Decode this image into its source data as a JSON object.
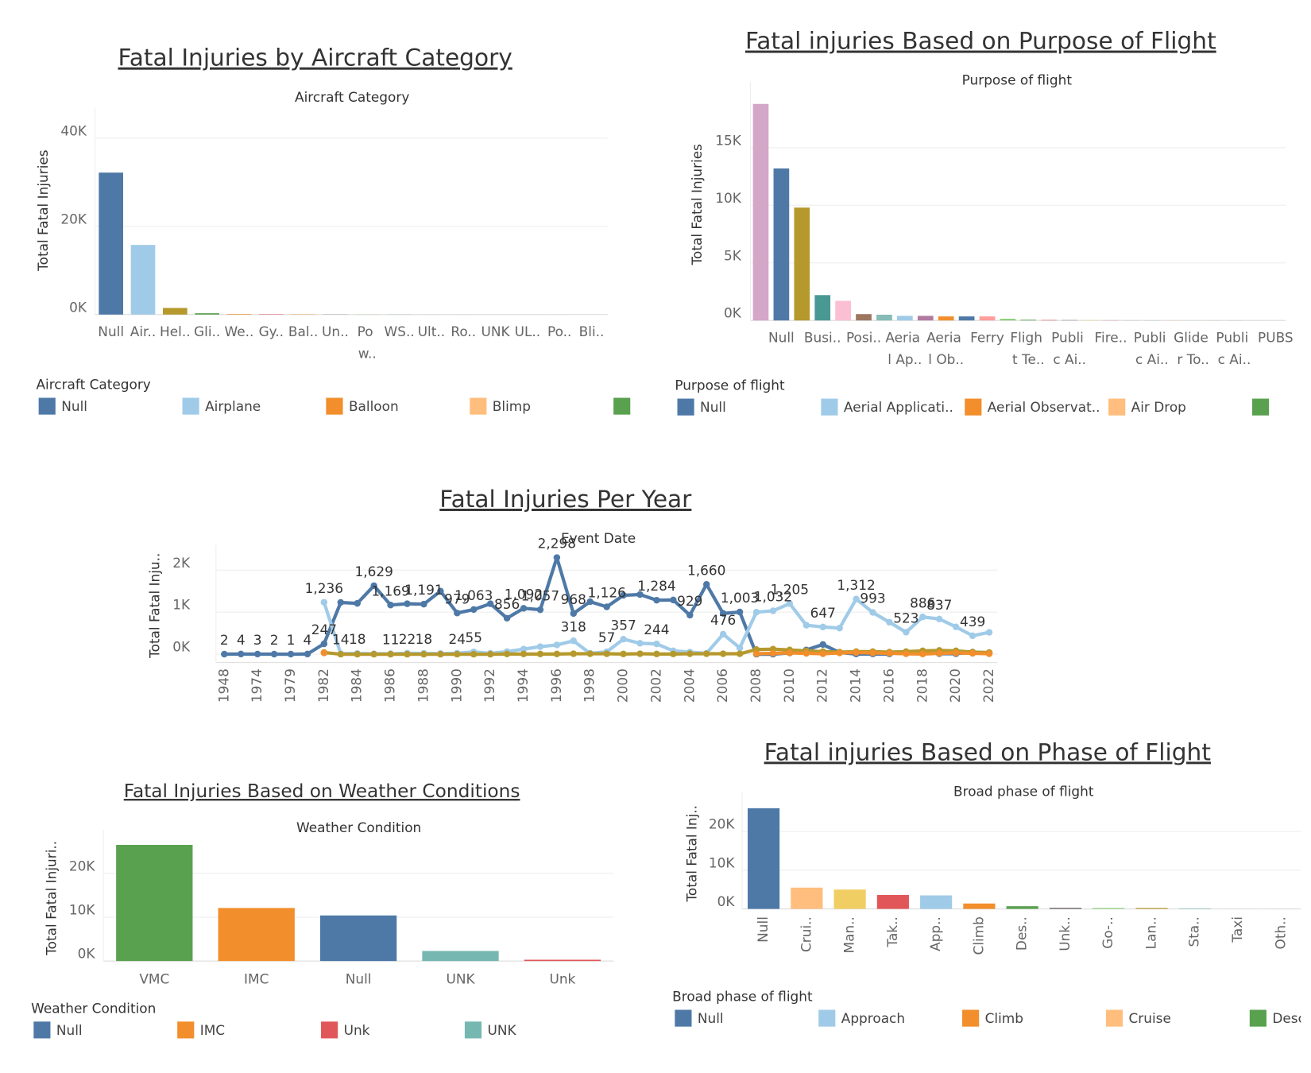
{
  "chart_data": [
    {
      "type": "bar",
      "title": "Fatal Injuries by Aircraft Category",
      "subtitle": "Aircraft Category",
      "y_label": "Total Fatal Injuries",
      "categories": [
        "Null",
        "Air..",
        "Hel..",
        "Gli..",
        "We..",
        "Gy..",
        "Bal..",
        "Un..",
        "Po w..",
        "WS..",
        "Ult..",
        "Ro..",
        "UNK",
        "UL..",
        "Po..",
        "Bli.."
      ],
      "values": [
        32200,
        15800,
        1500,
        300,
        120,
        80,
        60,
        40,
        30,
        20,
        15,
        10,
        8,
        5,
        3,
        2
      ],
      "colors": [
        "#4e79a7",
        "#a0cbe8",
        "#b6992d",
        "#59a14f",
        "#f28e2b",
        "#e15759",
        "#f28e2b",
        "#79706e",
        "#8cd17d",
        "#499894",
        "#86bcb6",
        "#b07aa1",
        "#76b7b2",
        "#d37295",
        "#9d7660",
        "#ffbe7d"
      ],
      "ylim": [
        0,
        45000
      ],
      "yticks": [
        {
          "value": 0,
          "label": "0K"
        },
        {
          "value": 20000,
          "label": "20K"
        },
        {
          "value": 40000,
          "label": "40K"
        }
      ],
      "grid": true,
      "legend": {
        "title": "Aircraft Category",
        "items": [
          {
            "name": "Null",
            "color": "#4e79a7"
          },
          {
            "name": "Airplane",
            "color": "#a0cbe8"
          },
          {
            "name": "Balloon",
            "color": "#f28e2b"
          },
          {
            "name": "Blimp",
            "color": "#ffbe7d"
          },
          {
            "color": "#59a14f"
          }
        ]
      }
    },
    {
      "type": "bar",
      "title": "Fatal injuries Based on Purpose of Flight",
      "subtitle": "Purpose of flight",
      "y_label": "Total Fatal Injuries",
      "categories": [
        null,
        "Null",
        null,
        "Busi..",
        null,
        "Posi..",
        null,
        "Aeria l Ap..",
        null,
        "Aeria l Ob..",
        null,
        "Ferry",
        null,
        "Fligh t Te..",
        null,
        "Publi c Ai..",
        null,
        "Fire..",
        null,
        "Publi c Ai..",
        null,
        "Glide r To..",
        null,
        "Publi c Ai..",
        null,
        "PUBS"
      ],
      "values": [
        18800,
        13200,
        9800,
        2200,
        1700,
        550,
        500,
        400,
        400,
        350,
        350,
        350,
        150,
        60,
        40,
        30,
        25,
        20,
        15,
        12,
        10,
        8,
        6,
        5,
        4,
        3
      ],
      "colors": [
        "#d4a6c8",
        "#4e79a7",
        "#b6992d",
        "#499894",
        "#fabfd2",
        "#9d7660",
        "#86bcb6",
        "#a0cbe8",
        "#b07aa1",
        "#f28e2b",
        "#4e79a7",
        "#ff9d9a",
        "#8cd17d",
        "#59a14f",
        "#e15759",
        "#79706e",
        "#f1ce63",
        "#d37295",
        "#bab0ac",
        "#76b7b2",
        "#ffbe7d",
        "#a0cbe8",
        "#b6992d",
        "#9d7660",
        "#86bcb6",
        "#d4a6c8"
      ],
      "ylim": [
        0,
        20000
      ],
      "yticks": [
        {
          "value": 0,
          "label": "0K"
        },
        {
          "value": 5000,
          "label": "5K"
        },
        {
          "value": 10000,
          "label": "10K"
        },
        {
          "value": 15000,
          "label": "15K"
        }
      ],
      "grid": true,
      "legend": {
        "title": "Purpose of flight",
        "items": [
          {
            "name": "Null",
            "color": "#4e79a7"
          },
          {
            "name": "Aerial Applicati..",
            "color": "#a0cbe8"
          },
          {
            "name": "Aerial Observat..",
            "color": "#f28e2b"
          },
          {
            "name": "Air Drop",
            "color": "#ffbe7d"
          },
          {
            "color": "#59a14f"
          }
        ]
      }
    },
    {
      "type": "line",
      "title": "Fatal Injuries Per Year",
      "subtitle": "Event Date",
      "y_label": "Total Fatal Inju..",
      "categories": [
        1948,
        null,
        1974,
        null,
        1979,
        null,
        1982,
        null,
        1984,
        null,
        1986,
        null,
        1988,
        null,
        1990,
        null,
        1992,
        null,
        1994,
        null,
        1996,
        null,
        1998,
        null,
        2000,
        null,
        2002,
        null,
        2004,
        null,
        2006,
        null,
        2008,
        null,
        2010,
        null,
        2012,
        null,
        2014,
        null,
        2016,
        null,
        2018,
        null,
        2020,
        null,
        2022
      ],
      "series": [
        {
          "color": "#4e79a7",
          "values": [
            2,
            4,
            3,
            2,
            1,
            4,
            247,
            1230,
            1210,
            1629,
            1169,
            1200,
            1191,
            1500,
            979,
            1063,
            1200,
            856,
            1092,
            1057,
            2298,
            968,
            1250,
            1126,
            1400,
            1420,
            1284,
            1290,
            929,
            1660,
            970,
            1003,
            0,
            0,
            30,
            100,
            230,
            40,
            5,
            5,
            5,
            null,
            null,
            10,
            10,
            50,
            30
          ],
          "value_labels": [
            "2",
            "4",
            "3",
            "2",
            "1",
            "4",
            "247",
            null,
            null,
            "1,629",
            "1,169",
            null,
            "1,191",
            null,
            "979",
            "1,063",
            null,
            "856",
            "1,092",
            "1,057",
            "2,298",
            "968",
            null,
            "1,126",
            null,
            null,
            "1,284",
            null,
            "929",
            "1,660",
            null,
            "1,003",
            null,
            null,
            null,
            null,
            null,
            null,
            null,
            null,
            null,
            null,
            null,
            null,
            null,
            null,
            null
          ]
        },
        {
          "color": "#a0cbe8",
          "values": [
            null,
            null,
            null,
            null,
            null,
            null,
            1236,
            14,
            18,
            10,
            11,
            22,
            18,
            15,
            24,
            55,
            20,
            60,
            120,
            180,
            220,
            318,
            20,
            57,
            357,
            260,
            244,
            80,
            50,
            20,
            476,
            150,
            1000,
            1032,
            1205,
            690,
            647,
            620,
            1312,
            993,
            760,
            523,
            886,
            837,
            650,
            439,
            520
          ],
          "value_labels": [
            null,
            null,
            null,
            null,
            null,
            null,
            "1,236",
            "14",
            "18",
            null,
            "11",
            "22",
            "18",
            null,
            "24",
            "55",
            null,
            null,
            null,
            null,
            null,
            "318",
            null,
            "57",
            "357",
            null,
            "244",
            null,
            null,
            null,
            "476",
            null,
            null,
            "1,032",
            "1,205",
            null,
            "647",
            null,
            "1,312",
            "993",
            null,
            "523",
            "886",
            "837",
            null,
            "439",
            null
          ]
        },
        {
          "color": "#b6992d",
          "values": [
            null,
            null,
            null,
            null,
            null,
            null,
            40,
            0,
            0,
            0,
            0,
            0,
            0,
            0,
            0,
            0,
            0,
            5,
            5,
            5,
            5,
            10,
            10,
            10,
            5,
            10,
            5,
            5,
            10,
            10,
            10,
            10,
            110,
            120,
            100,
            80,
            60,
            50,
            60,
            60,
            50,
            60,
            80,
            90,
            80,
            50,
            40
          ]
        },
        {
          "color": "#f28e2b",
          "values": [
            null,
            null,
            null,
            null,
            null,
            null,
            30,
            null,
            null,
            null,
            null,
            null,
            null,
            null,
            null,
            null,
            null,
            null,
            null,
            null,
            null,
            null,
            null,
            null,
            null,
            null,
            null,
            null,
            null,
            null,
            null,
            null,
            10,
            20,
            30,
            20,
            10,
            30,
            40,
            30,
            20,
            10,
            5,
            20,
            30,
            20,
            10
          ]
        }
      ],
      "ylim": [
        -200,
        2400
      ],
      "yticks": [
        {
          "value": 0,
          "label": "0K"
        },
        {
          "value": 1000,
          "label": "1K"
        },
        {
          "value": 2000,
          "label": "2K"
        }
      ],
      "grid": true
    },
    {
      "type": "bar",
      "title": "Fatal Injuries Based on Weather Conditions",
      "subtitle": "Weather Condition",
      "y_label": "Total Fatal Injuri..",
      "categories": [
        "VMC",
        "IMC",
        "Null",
        "UNK",
        "Unk"
      ],
      "values": [
        26500,
        12100,
        10400,
        2300,
        300
      ],
      "colors": [
        "#59a14f",
        "#f28e2b",
        "#4e79a7",
        "#76b7b2",
        "#e15759"
      ],
      "ylim": [
        0,
        28000
      ],
      "yticks": [
        {
          "value": 0,
          "label": "0K"
        },
        {
          "value": 10000,
          "label": "10K"
        },
        {
          "value": 20000,
          "label": "20K"
        }
      ],
      "grid": true,
      "legend": {
        "title": "Weather Condition",
        "items": [
          {
            "name": "Null",
            "color": "#4e79a7"
          },
          {
            "name": "IMC",
            "color": "#f28e2b"
          },
          {
            "name": "Unk",
            "color": "#e15759"
          },
          {
            "name": "UNK",
            "color": "#76b7b2"
          }
        ]
      }
    },
    {
      "type": "bar",
      "title": "Fatal injuries Based on Phase of Flight",
      "subtitle": "Broad phase of flight",
      "y_label": "Total Fatal Inj..",
      "categories": [
        "Null",
        "Crui..",
        "Man..",
        "Tak..",
        "App..",
        "Climb",
        "Des..",
        "Unk..",
        "Go-..",
        "Lan..",
        "Sta..",
        "Taxi",
        "Oth.."
      ],
      "values": [
        26000,
        5500,
        5000,
        3600,
        3500,
        1400,
        700,
        300,
        250,
        250,
        150,
        20,
        10
      ],
      "colors": [
        "#4e79a7",
        "#ffbe7d",
        "#f1ce63",
        "#e15759",
        "#a0cbe8",
        "#f28e2b",
        "#59a14f",
        "#79706e",
        "#8cd17d",
        "#b6992d",
        "#86bcb6",
        "#fabfd2",
        "#bab0ac"
      ],
      "ylim": [
        0,
        28000
      ],
      "yticks": [
        {
          "value": 0,
          "label": "0K"
        },
        {
          "value": 10000,
          "label": "10K"
        },
        {
          "value": 20000,
          "label": "20K"
        }
      ],
      "grid": true,
      "legend": {
        "title": "Broad phase of flight",
        "items": [
          {
            "name": "Null",
            "color": "#4e79a7"
          },
          {
            "name": "Approach",
            "color": "#a0cbe8"
          },
          {
            "name": "Climb",
            "color": "#f28e2b"
          },
          {
            "name": "Cruise",
            "color": "#ffbe7d"
          },
          {
            "name": "Desc",
            "color": "#59a14f"
          }
        ]
      }
    }
  ]
}
